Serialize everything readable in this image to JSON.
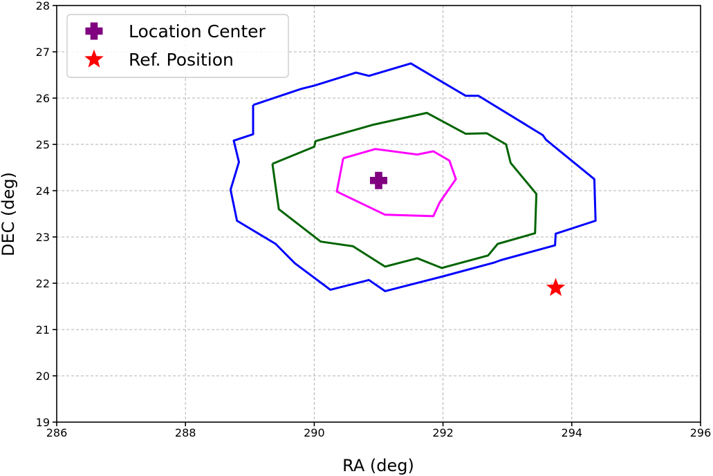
{
  "chart_data": {
    "type": "scatter",
    "title": "",
    "xlabel": "RA (deg)",
    "ylabel": "DEC (deg)",
    "xlim": [
      286,
      296
    ],
    "ylim": [
      19,
      28
    ],
    "x_ticks": [
      "286",
      "288",
      "290",
      "292",
      "294",
      "296"
    ],
    "y_ticks": [
      "19",
      "20",
      "21",
      "22",
      "23",
      "24",
      "25",
      "26",
      "27",
      "28"
    ],
    "grid": true,
    "legend_position": "top-left",
    "series": [
      {
        "name": "Location Center",
        "marker": "plus-filled",
        "color": "#800080",
        "points": [
          [
            291.0,
            24.22
          ]
        ]
      },
      {
        "name": "Ref. Position",
        "marker": "star",
        "color": "#ff0000",
        "points": [
          [
            293.75,
            21.9
          ]
        ]
      }
    ],
    "contours": [
      {
        "color": "#ff00ff",
        "points": [
          [
            290.45,
            24.7
          ],
          [
            290.95,
            24.9
          ],
          [
            291.6,
            24.78
          ],
          [
            291.85,
            24.85
          ],
          [
            292.1,
            24.65
          ],
          [
            292.2,
            24.25
          ],
          [
            291.95,
            23.75
          ],
          [
            291.85,
            23.45
          ],
          [
            291.1,
            23.48
          ],
          [
            290.35,
            23.98
          ],
          [
            290.45,
            24.7
          ]
        ]
      },
      {
        "color": "#006400",
        "points": [
          [
            289.35,
            24.58
          ],
          [
            290.0,
            24.95
          ],
          [
            290.02,
            25.07
          ],
          [
            290.9,
            25.42
          ],
          [
            291.75,
            25.68
          ],
          [
            292.35,
            25.23
          ],
          [
            292.68,
            25.24
          ],
          [
            292.98,
            25.0
          ],
          [
            293.05,
            24.6
          ],
          [
            293.45,
            23.93
          ],
          [
            293.43,
            23.08
          ],
          [
            292.85,
            22.85
          ],
          [
            292.7,
            22.6
          ],
          [
            291.98,
            22.33
          ],
          [
            291.6,
            22.54
          ],
          [
            291.1,
            22.36
          ],
          [
            290.6,
            22.8
          ],
          [
            290.1,
            22.9
          ],
          [
            289.45,
            23.6
          ],
          [
            289.35,
            24.58
          ]
        ]
      },
      {
        "color": "#0000ff",
        "points": [
          [
            289.05,
            25.85
          ],
          [
            289.8,
            26.2
          ],
          [
            290.0,
            26.27
          ],
          [
            290.65,
            26.55
          ],
          [
            290.85,
            26.48
          ],
          [
            291.5,
            26.75
          ],
          [
            292.35,
            26.05
          ],
          [
            292.55,
            26.05
          ],
          [
            293.55,
            25.2
          ],
          [
            293.6,
            25.1
          ],
          [
            294.35,
            24.25
          ],
          [
            294.37,
            23.35
          ],
          [
            293.75,
            23.07
          ],
          [
            293.74,
            22.82
          ],
          [
            292.9,
            22.5
          ],
          [
            292.8,
            22.45
          ],
          [
            292.0,
            22.15
          ],
          [
            291.1,
            21.83
          ],
          [
            290.85,
            22.07
          ],
          [
            290.25,
            21.86
          ],
          [
            289.7,
            22.43
          ],
          [
            289.4,
            22.85
          ],
          [
            288.8,
            23.35
          ],
          [
            288.7,
            24.02
          ],
          [
            288.83,
            24.62
          ],
          [
            288.75,
            25.08
          ],
          [
            289.05,
            25.22
          ],
          [
            289.05,
            25.85
          ]
        ]
      }
    ]
  }
}
